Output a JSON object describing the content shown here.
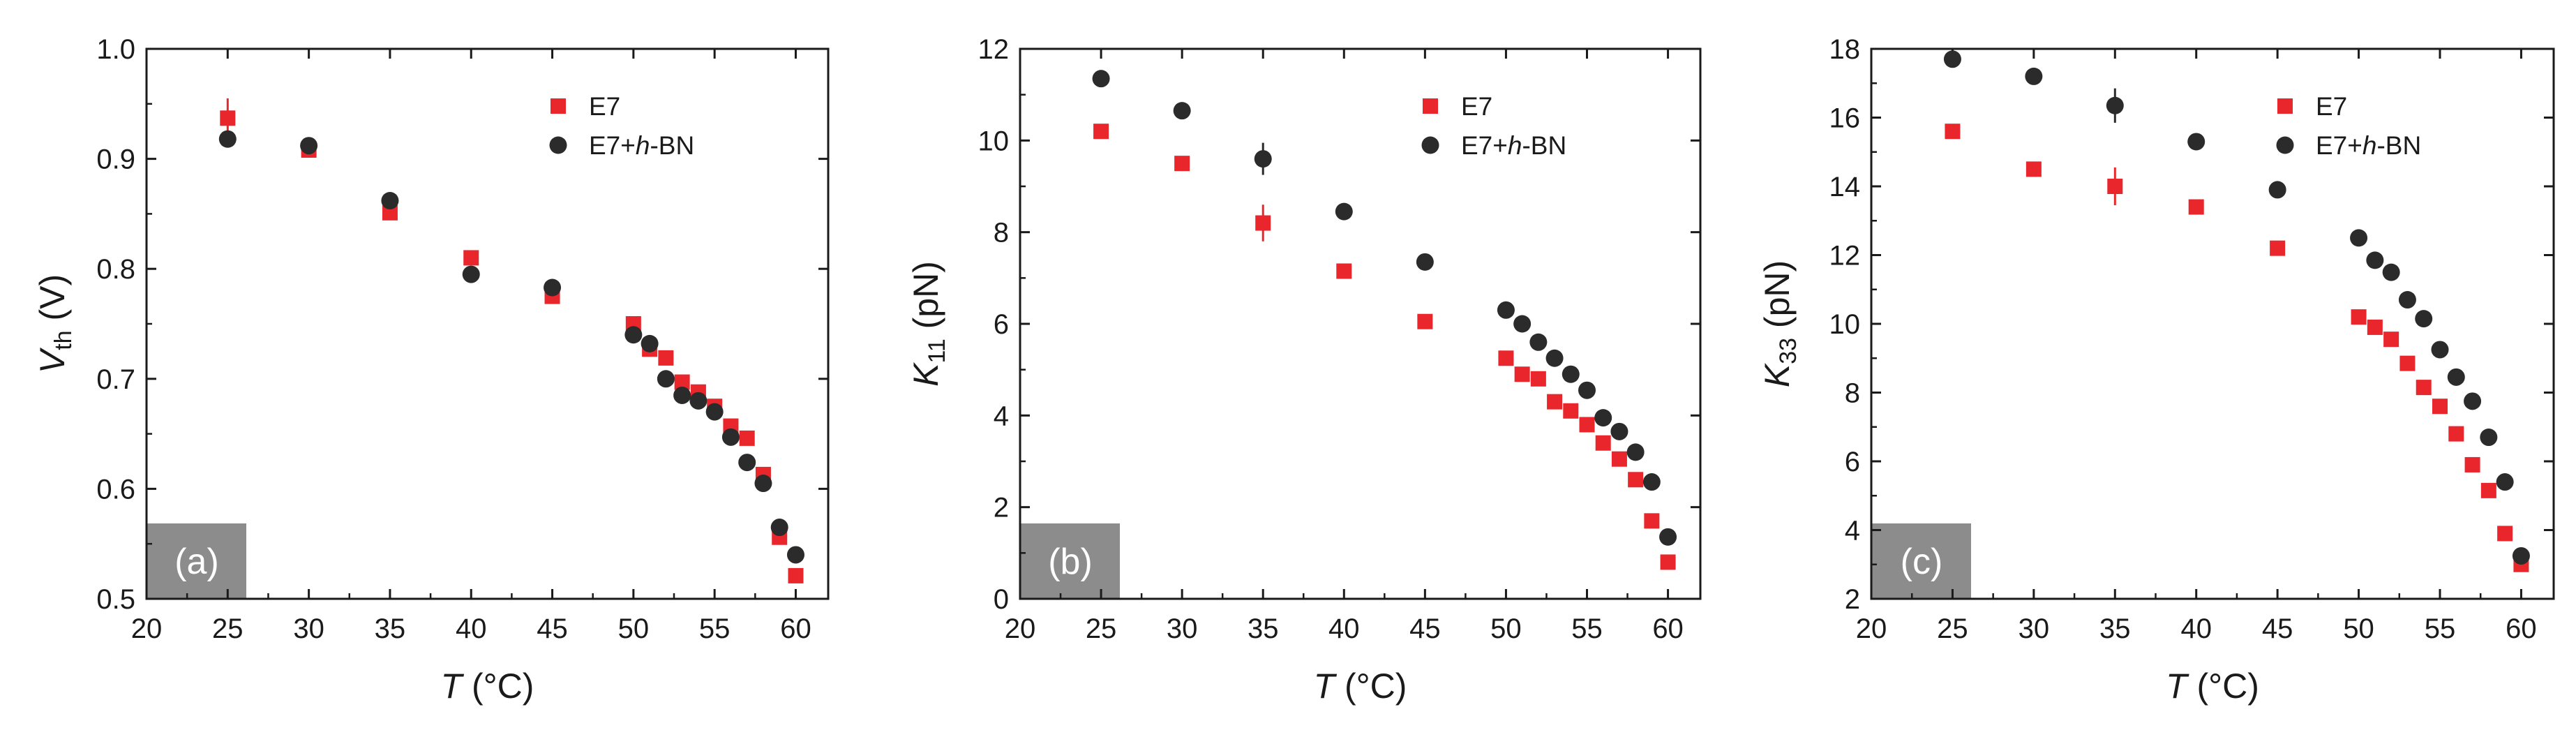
{
  "colors": {
    "e7": "#e8262b",
    "e7_hbn": "#2b2b2b",
    "axis": "#1a1a1a",
    "tag_bg": "#8c8c8c",
    "tag_text": "#ffffff"
  },
  "chart_data": [
    {
      "type": "scatter",
      "panel_label": "(a)",
      "title": "",
      "xlabel_italic": "T",
      "xlabel_rest": " (°C)",
      "ylabel_italic": "V",
      "ylabel_sub": "th",
      "ylabel_rest": " (V)",
      "xlim": [
        20,
        62
      ],
      "ylim": [
        0.5,
        1.0
      ],
      "xticks": [
        20,
        25,
        30,
        35,
        40,
        45,
        50,
        55,
        60
      ],
      "yticks": [
        0.5,
        0.6,
        0.7,
        0.8,
        0.9,
        1.0
      ],
      "ytick_labels": [
        "0.5",
        "0.6",
        "0.7",
        "0.8",
        "0.9",
        "1.0"
      ],
      "legend_position": "top-right",
      "series": [
        {
          "name": "E7",
          "marker": "square",
          "color": "#e8262b",
          "x": [
            25,
            30,
            35,
            40,
            45,
            50,
            51,
            52,
            53,
            54,
            55,
            56,
            57,
            58,
            59,
            60
          ],
          "y": [
            0.937,
            0.908,
            0.851,
            0.81,
            0.775,
            0.75,
            0.727,
            0.719,
            0.697,
            0.688,
            0.675,
            0.657,
            0.646,
            0.613,
            0.556,
            0.521
          ],
          "yerr": [
            0.018,
            0,
            0,
            0,
            0,
            0,
            0,
            0,
            0,
            0,
            0,
            0,
            0,
            0,
            0,
            0
          ]
        },
        {
          "name": "E7+h-BN",
          "name_prefix": "E7+",
          "name_italic": "h",
          "name_suffix": "-BN",
          "marker": "circle",
          "color": "#2b2b2b",
          "x": [
            25,
            30,
            35,
            40,
            45,
            50,
            51,
            52,
            53,
            54,
            55,
            56,
            57,
            58,
            59,
            60
          ],
          "y": [
            0.918,
            0.912,
            0.862,
            0.795,
            0.783,
            0.74,
            0.732,
            0.7,
            0.685,
            0.68,
            0.67,
            0.647,
            0.624,
            0.605,
            0.565,
            0.54
          ],
          "yerr": [
            0,
            0,
            0,
            0,
            0,
            0,
            0,
            0,
            0,
            0,
            0,
            0,
            0,
            0,
            0,
            0
          ]
        }
      ]
    },
    {
      "type": "scatter",
      "panel_label": "(b)",
      "title": "",
      "xlabel_italic": "T",
      "xlabel_rest": " (°C)",
      "ylabel_italic": "K",
      "ylabel_sub": "11",
      "ylabel_rest": " (pN)",
      "xlim": [
        20,
        62
      ],
      "ylim": [
        0,
        12
      ],
      "xticks": [
        20,
        25,
        30,
        35,
        40,
        45,
        50,
        55,
        60
      ],
      "yticks": [
        0,
        2,
        4,
        6,
        8,
        10,
        12
      ],
      "ytick_labels": [
        "0",
        "2",
        "4",
        "6",
        "8",
        "10",
        "12"
      ],
      "legend_position": "top-right",
      "series": [
        {
          "name": "E7",
          "marker": "square",
          "color": "#e8262b",
          "x": [
            25,
            30,
            35,
            40,
            45,
            50,
            51,
            52,
            53,
            54,
            55,
            56,
            57,
            58,
            59,
            60
          ],
          "y": [
            10.2,
            9.5,
            8.2,
            7.15,
            6.05,
            5.25,
            4.9,
            4.8,
            4.3,
            4.1,
            3.8,
            3.4,
            3.05,
            2.6,
            1.7,
            0.8
          ],
          "yerr": [
            0,
            0,
            0.4,
            0,
            0,
            0,
            0,
            0,
            0,
            0,
            0,
            0,
            0,
            0,
            0,
            0
          ]
        },
        {
          "name": "E7+h-BN",
          "name_prefix": "E7+",
          "name_italic": "h",
          "name_suffix": "-BN",
          "marker": "circle",
          "color": "#2b2b2b",
          "x": [
            25,
            30,
            35,
            40,
            45,
            50,
            51,
            52,
            53,
            54,
            55,
            56,
            57,
            58,
            59,
            60
          ],
          "y": [
            11.35,
            10.65,
            9.6,
            8.45,
            7.35,
            6.3,
            6.0,
            5.6,
            5.25,
            4.9,
            4.55,
            3.95,
            3.65,
            3.2,
            2.55,
            1.35
          ],
          "yerr": [
            0,
            0,
            0.35,
            0,
            0,
            0,
            0,
            0,
            0,
            0,
            0,
            0,
            0,
            0,
            0,
            0
          ]
        }
      ]
    },
    {
      "type": "scatter",
      "panel_label": "(c)",
      "title": "",
      "xlabel_italic": "T",
      "xlabel_rest": " (°C)",
      "ylabel_italic": "K",
      "ylabel_sub": "33",
      "ylabel_rest": " (pN)",
      "xlim": [
        20,
        62
      ],
      "ylim": [
        2,
        18
      ],
      "xticks": [
        20,
        25,
        30,
        35,
        40,
        45,
        50,
        55,
        60
      ],
      "yticks": [
        2,
        4,
        6,
        8,
        10,
        12,
        14,
        16,
        18
      ],
      "ytick_labels": [
        "2",
        "4",
        "6",
        "8",
        "10",
        "12",
        "14",
        "16",
        "18"
      ],
      "legend_position": "top-right",
      "series": [
        {
          "name": "E7",
          "marker": "square",
          "color": "#e8262b",
          "x": [
            25,
            30,
            35,
            40,
            45,
            50,
            51,
            52,
            53,
            54,
            55,
            56,
            57,
            58,
            59,
            60
          ],
          "y": [
            15.6,
            14.5,
            14.0,
            13.4,
            12.2,
            10.2,
            9.9,
            9.55,
            8.85,
            8.15,
            7.6,
            6.8,
            5.9,
            5.15,
            3.9,
            3.0
          ],
          "yerr": [
            0,
            0,
            0.55,
            0,
            0,
            0,
            0,
            0,
            0,
            0,
            0,
            0,
            0,
            0,
            0,
            0
          ]
        },
        {
          "name": "E7+h-BN",
          "name_prefix": "E7+",
          "name_italic": "h",
          "name_suffix": "-BN",
          "marker": "circle",
          "color": "#2b2b2b",
          "x": [
            25,
            30,
            35,
            40,
            45,
            50,
            51,
            52,
            53,
            54,
            55,
            56,
            57,
            58,
            59,
            60
          ],
          "y": [
            17.7,
            17.2,
            16.35,
            15.3,
            13.9,
            12.5,
            11.85,
            11.5,
            10.7,
            10.15,
            9.25,
            8.45,
            7.75,
            6.7,
            5.4,
            3.25
          ],
          "yerr": [
            0,
            0,
            0.5,
            0,
            0,
            0,
            0,
            0,
            0,
            0,
            0,
            0,
            0,
            0,
            0,
            0
          ]
        }
      ]
    }
  ]
}
